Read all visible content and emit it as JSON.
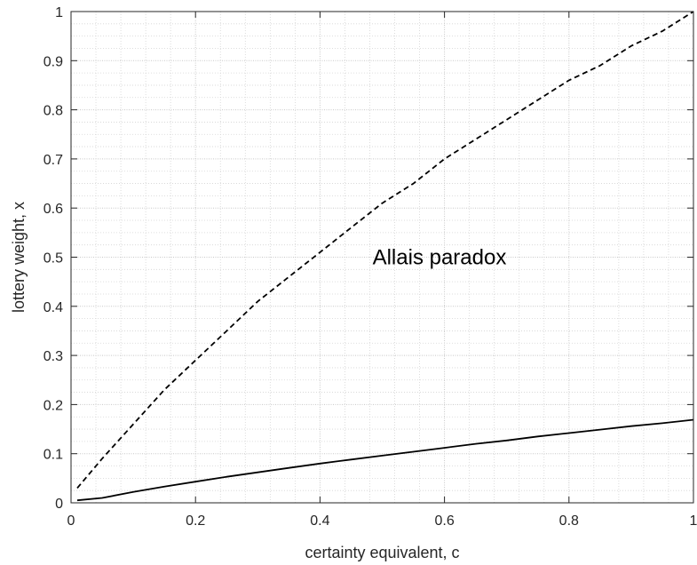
{
  "chart_data": {
    "type": "line",
    "xlabel": "certainty equivalent, c",
    "ylabel": "lottery weight, x",
    "xlim": [
      0,
      1
    ],
    "ylim": [
      0,
      1
    ],
    "xticks": [
      0,
      0.2,
      0.4,
      0.6,
      0.8,
      1
    ],
    "xtick_labels": [
      "0",
      "0.2",
      "0.4",
      "0.6",
      "0.8",
      "1"
    ],
    "yticks": [
      0,
      0.1,
      0.2,
      0.3,
      0.4,
      0.5,
      0.6,
      0.7,
      0.8,
      0.9,
      1
    ],
    "ytick_labels": [
      "0",
      "0.1",
      "0.2",
      "0.3",
      "0.4",
      "0.5",
      "0.6",
      "0.7",
      "0.8",
      "0.9",
      "1"
    ],
    "grid": true,
    "minor_grid": true,
    "annotation": {
      "text": "Allais paradox",
      "x": 0.6,
      "y": 0.5
    },
    "series": [
      {
        "style": "dashed",
        "color": "#000000",
        "x": [
          0.01,
          0.05,
          0.1,
          0.15,
          0.2,
          0.25,
          0.3,
          0.35,
          0.4,
          0.45,
          0.5,
          0.55,
          0.6,
          0.65,
          0.7,
          0.75,
          0.8,
          0.85,
          0.9,
          0.95,
          1.0
        ],
        "y": [
          0.03,
          0.09,
          0.16,
          0.23,
          0.29,
          0.35,
          0.41,
          0.46,
          0.51,
          0.56,
          0.61,
          0.65,
          0.7,
          0.74,
          0.78,
          0.82,
          0.86,
          0.89,
          0.93,
          0.96,
          1.0
        ]
      },
      {
        "style": "solid",
        "color": "#000000",
        "x": [
          0.01,
          0.05,
          0.1,
          0.15,
          0.2,
          0.25,
          0.3,
          0.35,
          0.4,
          0.45,
          0.5,
          0.55,
          0.6,
          0.65,
          0.7,
          0.75,
          0.8,
          0.85,
          0.9,
          0.95,
          1.0
        ],
        "y": [
          0.005,
          0.01,
          0.022,
          0.033,
          0.043,
          0.053,
          0.062,
          0.071,
          0.08,
          0.088,
          0.096,
          0.104,
          0.112,
          0.12,
          0.127,
          0.135,
          0.142,
          0.149,
          0.156,
          0.162,
          0.169
        ]
      }
    ]
  }
}
